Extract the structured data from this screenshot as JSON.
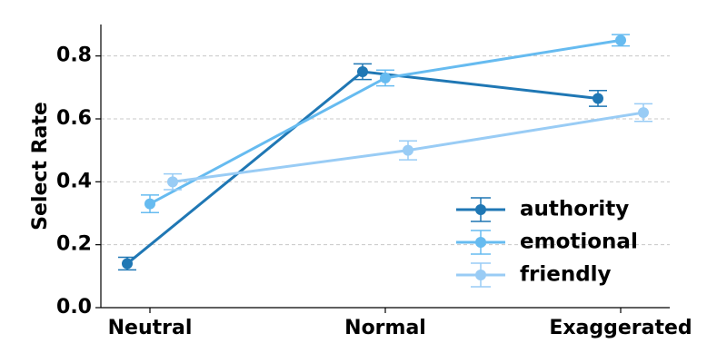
{
  "chart_data": {
    "type": "line",
    "categories": [
      "Neutral",
      "Normal",
      "Exaggerated"
    ],
    "ylabel": "Select Rate",
    "xlabel": "",
    "ylim": [
      0,
      0.9
    ],
    "yticks": [
      "0.0",
      "0.2",
      "0.4",
      "0.6",
      "0.8"
    ],
    "grid": "horizontal dashed",
    "legend_position": "lower-right",
    "series": [
      {
        "name": "authority",
        "color": "#1f77b4",
        "values": [
          0.14,
          0.75,
          0.665
        ],
        "errors": [
          0.02,
          0.025,
          0.025
        ]
      },
      {
        "name": "emotional",
        "color": "#66bbf0",
        "values": [
          0.33,
          0.73,
          0.85
        ],
        "errors": [
          0.028,
          0.025,
          0.018
        ]
      },
      {
        "name": "friendly",
        "color": "#99ccf5",
        "values": [
          0.4,
          0.5,
          0.62
        ],
        "errors": [
          0.025,
          0.03,
          0.028
        ]
      }
    ]
  }
}
